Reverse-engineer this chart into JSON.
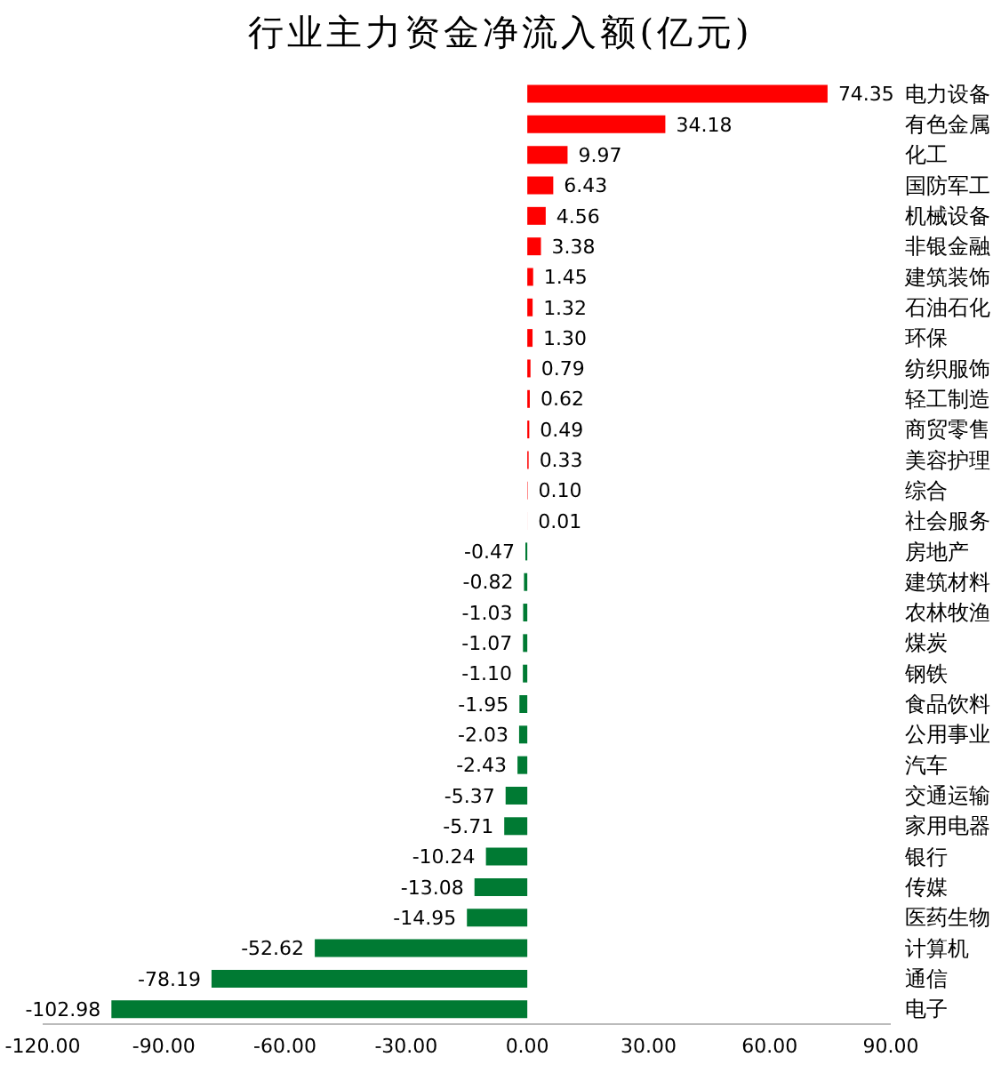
{
  "chart_data": {
    "type": "bar",
    "orientation": "horizontal",
    "title": "行业主力资金净流入额(亿元)",
    "categories": [
      "电力设备",
      "有色金属",
      "化工",
      "国防军工",
      "机械设备",
      "非银金融",
      "建筑装饰",
      "石油石化",
      "环保",
      "纺织服饰",
      "轻工制造",
      "商贸零售",
      "美容护理",
      "综合",
      "社会服务",
      "房地产",
      "建筑材料",
      "农林牧渔",
      "煤炭",
      "钢铁",
      "食品饮料",
      "公用事业",
      "汽车",
      "交通运输",
      "家用电器",
      "银行",
      "传媒",
      "医药生物",
      "计算机",
      "通信",
      "电子"
    ],
    "values": [
      74.35,
      34.18,
      9.97,
      6.43,
      4.56,
      3.38,
      1.45,
      1.32,
      1.3,
      0.79,
      0.62,
      0.49,
      0.33,
      0.1,
      0.01,
      -0.47,
      -0.82,
      -1.03,
      -1.07,
      -1.1,
      -1.95,
      -2.03,
      -2.43,
      -5.37,
      -5.71,
      -10.24,
      -13.08,
      -14.95,
      -52.62,
      -78.19,
      -102.98
    ],
    "value_labels": [
      "74.35",
      "34.18",
      "9.97",
      "6.43",
      "4.56",
      "3.38",
      "1.45",
      "1.32",
      "1.30",
      "0.79",
      "0.62",
      "0.49",
      "0.33",
      "0.10",
      "0.01",
      "-0.47",
      "-0.82",
      "-1.03",
      "-1.07",
      "-1.10",
      "-1.95",
      "-2.03",
      "-2.43",
      "-5.37",
      "-5.71",
      "-10.24",
      "-13.08",
      "-14.95",
      "-52.62",
      "-78.19",
      "-102.98"
    ],
    "colors": [
      "#ff0000",
      "#ff0000",
      "#ff0000",
      "#ff0000",
      "#ff0000",
      "#ff0000",
      "#ff0000",
      "#ff0000",
      "#ff0000",
      "#ff0000",
      "#ff0000",
      "#ff0000",
      "#ff0000",
      "#ff0000",
      "#ff0000",
      "#007a33",
      "#007a33",
      "#007a33",
      "#007a33",
      "#007a33",
      "#007a33",
      "#007a33",
      "#007a33",
      "#007a33",
      "#007a33",
      "#007a33",
      "#007a33",
      "#007a33",
      "#007a33",
      "#007a33",
      "#007a33"
    ],
    "xlim": [
      -120,
      90
    ],
    "xticks": [
      {
        "value": -120,
        "label": "-120.00"
      },
      {
        "value": -90,
        "label": "-90.00"
      },
      {
        "value": -60,
        "label": "-60.00"
      },
      {
        "value": -30,
        "label": "-30.00"
      },
      {
        "value": 0,
        "label": "0.00"
      },
      {
        "value": 30,
        "label": "30.00"
      },
      {
        "value": 60,
        "label": "60.00"
      },
      {
        "value": 90,
        "label": "90.00"
      }
    ]
  }
}
